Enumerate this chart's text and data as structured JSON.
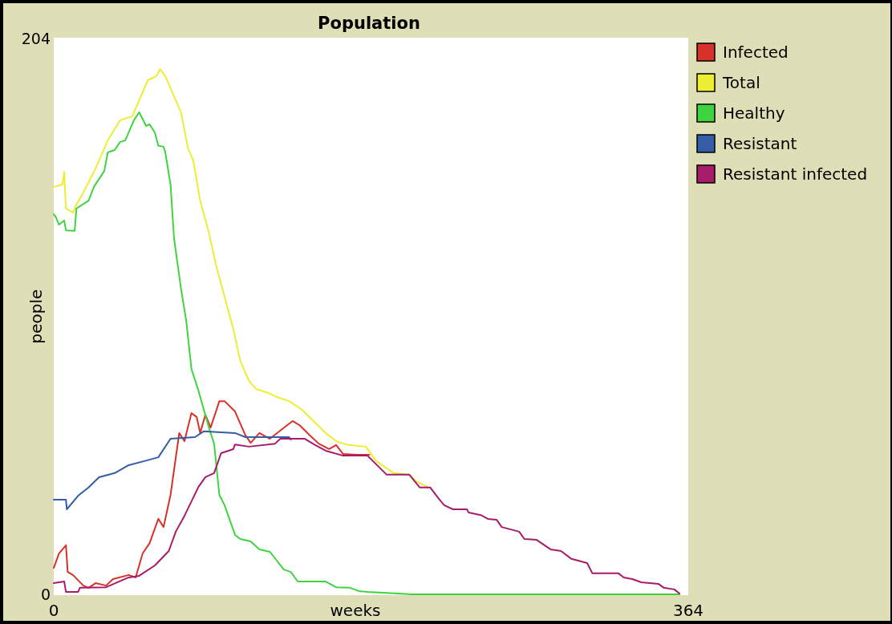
{
  "chart_data": {
    "type": "line",
    "title": "Population",
    "xlabel": "weeks",
    "ylabel": "people",
    "xlim": [
      0,
      364
    ],
    "ylim": [
      0,
      204
    ],
    "xticks": [
      0,
      364
    ],
    "yticks": [
      0,
      204
    ],
    "grid": false,
    "legend": "right",
    "marker": "none",
    "line_style": "solid",
    "series": [
      {
        "name": "Infected",
        "color": "#d73229",
        "x": [
          0,
          3,
          7,
          8,
          11,
          17,
          20,
          24,
          30,
          34,
          43,
          47,
          51,
          55,
          60,
          63,
          65,
          67,
          72,
          75,
          79,
          82,
          84,
          87,
          90,
          95,
          98,
          104,
          110,
          113,
          118,
          124,
          130,
          137,
          141,
          147,
          152,
          158,
          162,
          166,
          174,
          181
        ],
        "values": [
          9.7,
          15.0,
          18.0,
          8.2,
          7.1,
          3.2,
          2.4,
          4.1,
          3.2,
          5.6,
          7.1,
          6.2,
          15.0,
          18.8,
          27.7,
          24.7,
          30.6,
          36.5,
          59.2,
          56.2,
          66.5,
          65.1,
          59.2,
          65.9,
          61.2,
          70.9,
          70.9,
          67.1,
          58.3,
          55.6,
          59.2,
          57.1,
          60.1,
          63.6,
          62.1,
          58.3,
          55.3,
          53.3,
          54.8,
          51.5,
          51.2,
          51.2
        ]
      },
      {
        "name": "Total",
        "color": "#eded31",
        "x": [
          0,
          5,
          6,
          7,
          11,
          13,
          17,
          24,
          31,
          38,
          45,
          50,
          54,
          59,
          61,
          64,
          68,
          73,
          77,
          80,
          84,
          89,
          93,
          98,
          103,
          107,
          112,
          116,
          123,
          128,
          135,
          142,
          149,
          156,
          162,
          169,
          179,
          185,
          195,
          204,
          208,
          215
        ],
        "values": [
          149.5,
          150.4,
          155.1,
          141.6,
          140.1,
          143.1,
          147.5,
          156.3,
          166.6,
          174.0,
          175.4,
          182.8,
          188.7,
          190.2,
          192.8,
          190.2,
          184.3,
          176.9,
          163.7,
          159.3,
          144.5,
          132.8,
          121.0,
          109.2,
          97.4,
          85.7,
          78.3,
          75.4,
          73.9,
          72.4,
          70.9,
          68.0,
          63.6,
          59.2,
          56.2,
          54.8,
          54.2,
          48.9,
          44.5,
          43.9,
          41.5,
          39.2
        ]
      },
      {
        "name": "Healthy",
        "color": "#3fd43f",
        "x": [
          0,
          1,
          3,
          6,
          7,
          12,
          13,
          20,
          23,
          29,
          31,
          35,
          38,
          41,
          46,
          49,
          53,
          55,
          58,
          60,
          63,
          64,
          67,
          69,
          73,
          76,
          79,
          83,
          89,
          92,
          95,
          98,
          104,
          107,
          113,
          118,
          124,
          132,
          136,
          140,
          156,
          162,
          170,
          175,
          180,
          205,
          359
        ],
        "values": [
          139.5,
          138.7,
          135.7,
          137.2,
          133.6,
          133.4,
          141.6,
          144.5,
          149.5,
          155.4,
          162.2,
          163.1,
          166.0,
          166.6,
          174.0,
          176.9,
          171.9,
          172.5,
          169.5,
          164.6,
          164.3,
          162.2,
          150.4,
          130.7,
          112.2,
          100.4,
          82.7,
          74.8,
          61.2,
          55.3,
          36.5,
          32.7,
          21.8,
          20.3,
          19.4,
          16.5,
          15.6,
          9.1,
          8.2,
          4.7,
          4.7,
          2.6,
          2.4,
          1.2,
          0.9,
          0,
          0
        ]
      },
      {
        "name": "Resistant",
        "color": "#345da7",
        "x": [
          0,
          7,
          7.5,
          14,
          20,
          26,
          35,
          43,
          52,
          60,
          67,
          81,
          86,
          104,
          110,
          135,
          136
        ],
        "values": [
          34.7,
          34.7,
          31.2,
          36.2,
          39.2,
          43.0,
          44.5,
          47.4,
          48.9,
          50.3,
          57.1,
          57.7,
          59.8,
          59.2,
          57.7,
          57.7,
          56.8
        ]
      },
      {
        "name": "Resistant infected",
        "color": "#a71b6a",
        "x": [
          0,
          6,
          7,
          14,
          15,
          30,
          43,
          49,
          58,
          66,
          70,
          75,
          83,
          87,
          92,
          96,
          103,
          104,
          112,
          127,
          130,
          144,
          150,
          156,
          166,
          180,
          191,
          204,
          210,
          216,
          221,
          224,
          229,
          237,
          238,
          245,
          249,
          254,
          257,
          267,
          270,
          277,
          285,
          291,
          297,
          306,
          309,
          324,
          327,
          332,
          337,
          347,
          350,
          356,
          359
        ],
        "values": [
          4.1,
          4.7,
          0.9,
          0.9,
          2.4,
          2.6,
          6.2,
          6.8,
          10.6,
          15.9,
          23.0,
          28.8,
          39.4,
          43.0,
          44.5,
          51.8,
          53.3,
          55.0,
          54.2,
          55.3,
          57.1,
          57.1,
          54.8,
          52.7,
          50.9,
          50.9,
          43.9,
          43.9,
          39.2,
          39.2,
          35.0,
          32.7,
          31.2,
          31.2,
          30.0,
          29.1,
          27.7,
          27.4,
          24.7,
          23.0,
          20.3,
          20.0,
          16.5,
          15.9,
          13.0,
          11.5,
          7.7,
          7.7,
          6.2,
          5.6,
          4.4,
          3.8,
          2.4,
          1.8,
          0.3
        ]
      }
    ]
  }
}
